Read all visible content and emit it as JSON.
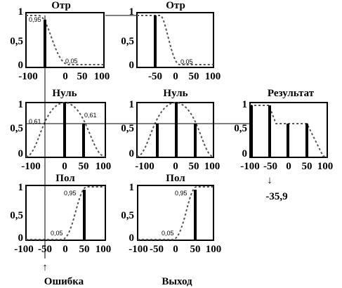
{
  "labels": {
    "otr": "Отр",
    "nul": "Нуль",
    "pol": "Пол",
    "result": "Результат",
    "error": "Ошибка",
    "output": "Выход",
    "result_value": "-35,9",
    "arrow_up": "↑",
    "arrow_down": "↓"
  },
  "ticks": {
    "y_top": "1",
    "y_mid": "0,5",
    "y_bottom": "0",
    "x_m100": "-100",
    "x_m50": "-50",
    "x_0": "0",
    "x_50": "50",
    "x_100": "100"
  },
  "values": {
    "v095": "0,95",
    "v005": "0,05",
    "v061": "0,61"
  }
}
